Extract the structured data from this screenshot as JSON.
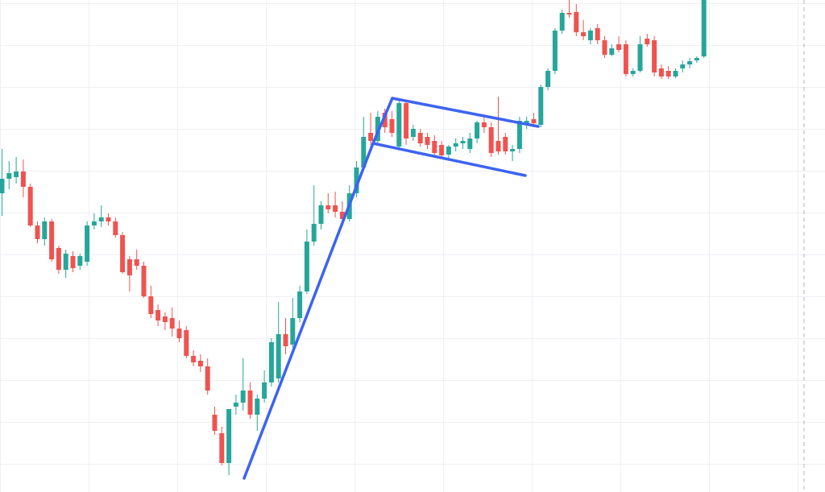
{
  "chart_data": {
    "type": "candlestick",
    "up_color": "#26a69a",
    "down_color": "#ef5350",
    "ylim": [
      0,
      611
    ],
    "open": [
      371,
      389,
      391,
      398,
      379,
      331,
      314,
      336,
      303,
      276,
      293,
      281,
      286,
      331,
      336,
      341,
      336,
      319,
      289,
      289,
      281,
      243,
      226,
      218,
      216,
      203,
      201,
      169,
      163,
      156,
      96,
      73,
      36,
      106,
      111,
      126,
      96,
      116,
      136,
      141,
      196,
      183,
      216,
      249,
      311,
      333,
      356,
      356,
      348,
      339,
      371,
      403,
      446,
      436,
      471,
      463,
      429,
      483,
      441,
      446,
      441,
      436,
      431,
      419,
      429,
      433,
      426,
      439,
      459,
      453,
      436,
      441,
      423,
      426,
      456,
      463,
      456,
      503,
      523,
      573,
      595,
      596,
      571,
      561,
      576,
      561,
      543,
      556,
      556,
      519,
      523,
      563,
      561,
      526,
      523,
      516,
      526,
      531,
      536,
      541
    ],
    "high": [
      426,
      411,
      416,
      413,
      383,
      336,
      341,
      339,
      306,
      301,
      299,
      296,
      336,
      346,
      356,
      346,
      341,
      323,
      293,
      301,
      286,
      256,
      233,
      223,
      229,
      213,
      206,
      176,
      171,
      166,
      106,
      81,
      103,
      121,
      166,
      136,
      121,
      151,
      191,
      236,
      216,
      241,
      256,
      326,
      381,
      361,
      371,
      373,
      361,
      381,
      411,
      466,
      471,
      473,
      476,
      473,
      486,
      486,
      456,
      451,
      446,
      443,
      436,
      431,
      439,
      441,
      446,
      461,
      466,
      459,
      491,
      446,
      431,
      466,
      466,
      471,
      506,
      526,
      576,
      599,
      611,
      606,
      586,
      576,
      581,
      566,
      556,
      566,
      561,
      526,
      566,
      569,
      566,
      531,
      529,
      526,
      536,
      539,
      541,
      611
    ],
    "low": [
      343,
      376,
      383,
      366,
      329,
      309,
      306,
      286,
      271,
      266,
      273,
      276,
      281,
      326,
      329,
      331,
      316,
      271,
      249,
      276,
      241,
      216,
      206,
      201,
      193,
      186,
      166,
      156,
      149,
      121,
      71,
      33,
      21,
      96,
      101,
      91,
      76,
      111,
      131,
      136,
      171,
      179,
      211,
      246,
      306,
      326,
      346,
      341,
      333,
      336,
      366,
      399,
      431,
      431,
      446,
      441,
      426,
      431,
      436,
      429,
      426,
      416,
      416,
      413,
      423,
      426,
      421,
      433,
      446,
      416,
      419,
      419,
      411,
      421,
      451,
      453,
      453,
      499,
      519,
      569,
      589,
      566,
      561,
      556,
      556,
      539,
      541,
      546,
      516,
      516,
      521,
      553,
      516,
      513,
      513,
      514,
      521,
      526,
      533,
      539
    ],
    "close": [
      389,
      396,
      398,
      379,
      331,
      314,
      336,
      289,
      276,
      296,
      278,
      293,
      331,
      336,
      341,
      336,
      319,
      273,
      269,
      281,
      243,
      221,
      213,
      211,
      203,
      191,
      169,
      161,
      156,
      126,
      76,
      36,
      103,
      111,
      126,
      96,
      116,
      136,
      186,
      196,
      181,
      216,
      249,
      311,
      333,
      356,
      351,
      348,
      339,
      371,
      403,
      441,
      436,
      466,
      453,
      446,
      483,
      439,
      451,
      433,
      431,
      421,
      418,
      429,
      433,
      436,
      439,
      459,
      453,
      421,
      423,
      423,
      426,
      461,
      461,
      458,
      503,
      523,
      573,
      595,
      593,
      571,
      566,
      573,
      561,
      543,
      551,
      549,
      519,
      523,
      556,
      556,
      521,
      516,
      516,
      523,
      531,
      535,
      539,
      611
    ]
  }
}
